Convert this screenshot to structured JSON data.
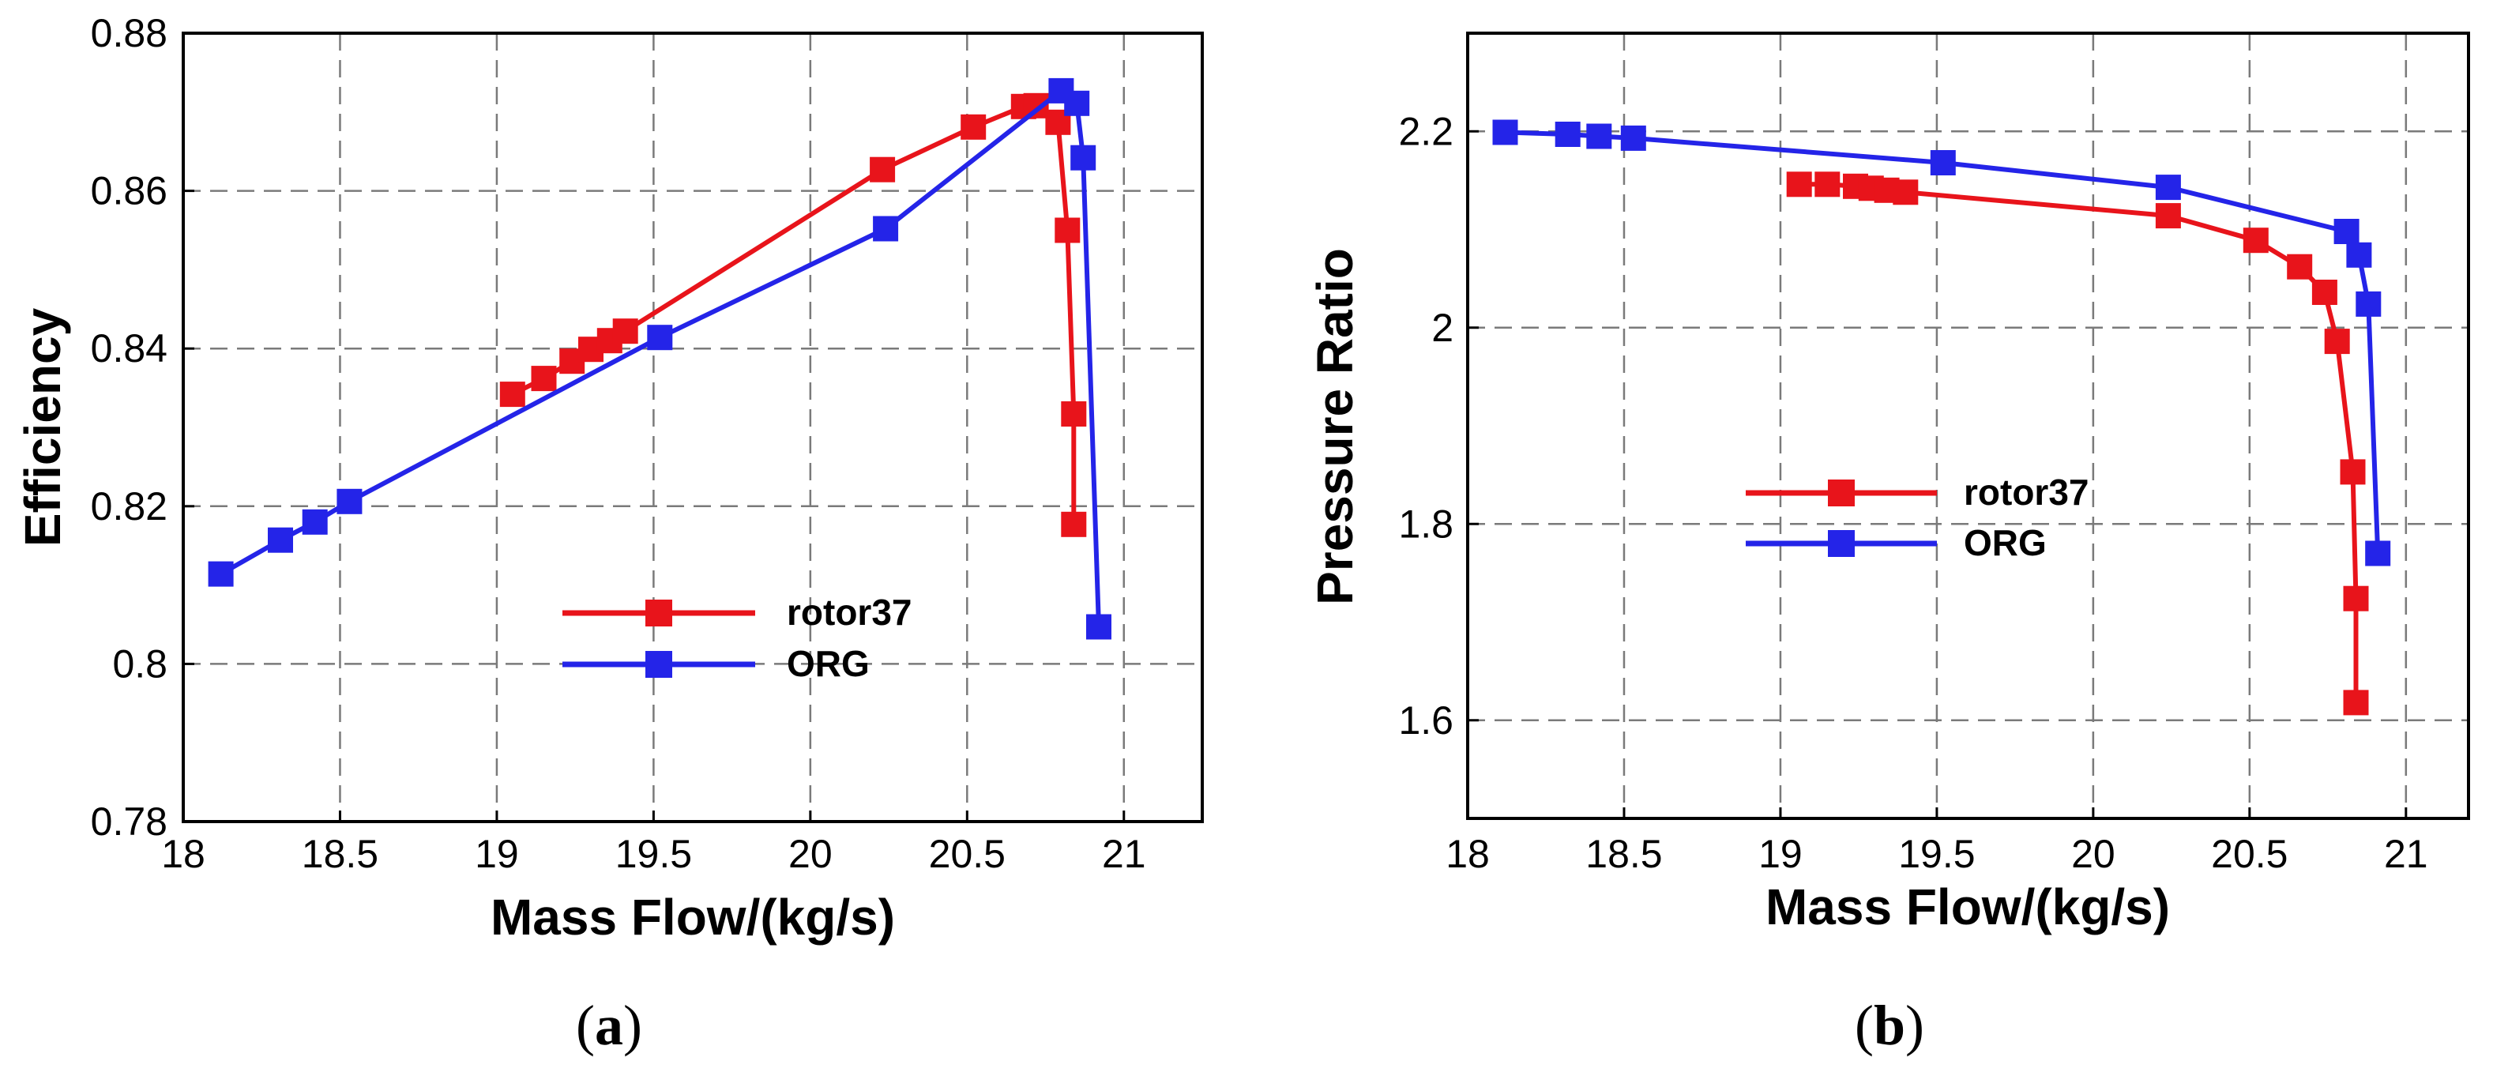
{
  "chart_data": [
    {
      "id": "a",
      "type": "line",
      "panel_label": "(a)",
      "panel_letter": "a",
      "xlabel": "Mass Flow/(kg/s)",
      "ylabel": "Efficiency",
      "xlim": [
        18,
        21.25
      ],
      "ylim": [
        0.78,
        0.88
      ],
      "xticks": [
        18,
        18.5,
        19,
        19.5,
        20,
        20.5,
        21
      ],
      "xtick_labels": [
        "18",
        "18.5",
        "19",
        "19.5",
        "20",
        "20.5",
        "21"
      ],
      "yticks": [
        0.78,
        0.8,
        0.82,
        0.84,
        0.86,
        0.88
      ],
      "ytick_labels": [
        "0.78",
        "0.8",
        "0.82",
        "0.84",
        "0.86",
        "0.88"
      ],
      "grid": true,
      "legend_position": "lower-center",
      "series": [
        {
          "name": "rotor37",
          "color": "#e8141b",
          "x": [
            19.05,
            19.15,
            19.24,
            19.3,
            19.36,
            19.41,
            20.23,
            20.52,
            20.68,
            20.72,
            20.79,
            20.82,
            20.84,
            20.84
          ],
          "y": [
            0.8342,
            0.8362,
            0.8384,
            0.8399,
            0.841,
            0.8422,
            0.8627,
            0.8681,
            0.8707,
            0.8708,
            0.8687,
            0.855,
            0.8317,
            0.8177
          ]
        },
        {
          "name": "ORG",
          "color": "#2424e8",
          "x": [
            18.12,
            18.31,
            18.42,
            18.53,
            19.52,
            20.24,
            20.8,
            20.85,
            20.87,
            20.92
          ],
          "y": [
            0.8114,
            0.8157,
            0.818,
            0.8206,
            0.8414,
            0.8552,
            0.8727,
            0.8711,
            0.8642,
            0.8047
          ]
        }
      ]
    },
    {
      "id": "b",
      "type": "line",
      "panel_label": "(b)",
      "panel_letter": "b",
      "xlabel": "Mass Flow/(kg/s)",
      "ylabel": "Pressure Ratio",
      "xlim": [
        18,
        21.2
      ],
      "ylim": [
        1.5,
        2.3
      ],
      "xticks": [
        18,
        18.5,
        19,
        19.5,
        20,
        20.5,
        21
      ],
      "xtick_labels": [
        "18",
        "18.5",
        "19",
        "19.5",
        "20",
        "20.5",
        "21"
      ],
      "yticks": [
        1.6,
        1.8,
        2,
        2.2
      ],
      "ytick_labels": [
        "1.6",
        "1.8",
        "2",
        "2.2"
      ],
      "grid": true,
      "legend_position": "center-left",
      "series": [
        {
          "name": "rotor37",
          "color": "#e8141b",
          "x": [
            19.06,
            19.15,
            19.24,
            19.29,
            19.34,
            19.4,
            20.24,
            20.52,
            20.66,
            20.74,
            20.78,
            20.83,
            20.84,
            20.84
          ],
          "y": [
            2.146,
            2.146,
            2.144,
            2.142,
            2.14,
            2.138,
            2.114,
            2.089,
            2.062,
            2.036,
            1.986,
            1.853,
            1.724,
            1.618
          ]
        },
        {
          "name": "ORG",
          "color": "#2424e8",
          "x": [
            18.12,
            18.32,
            18.42,
            18.53,
            19.52,
            20.24,
            20.81,
            20.85,
            20.88,
            20.91
          ],
          "y": [
            2.199,
            2.197,
            2.195,
            2.193,
            2.168,
            2.143,
            2.098,
            2.074,
            2.024,
            1.77
          ]
        }
      ]
    }
  ]
}
